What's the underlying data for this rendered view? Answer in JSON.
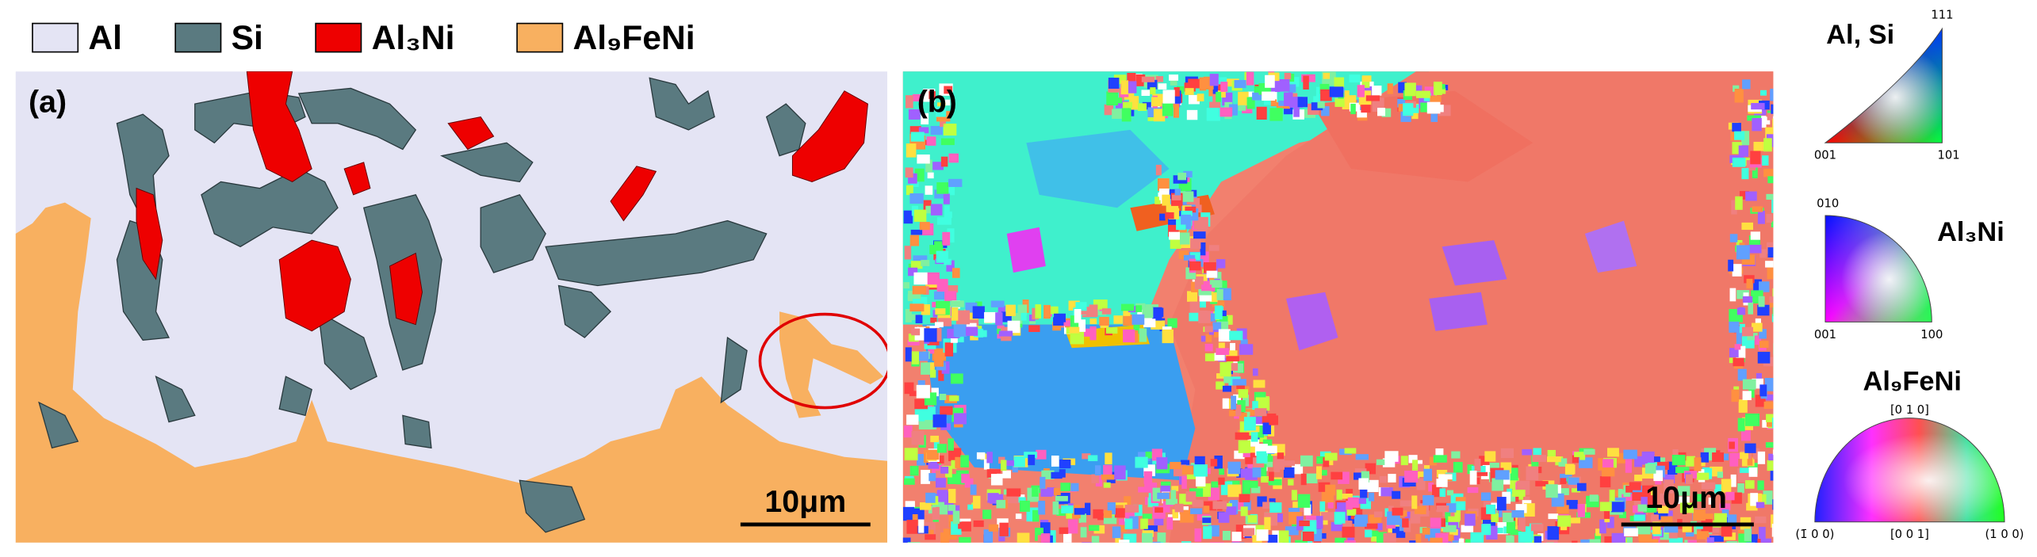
{
  "legend": [
    {
      "label": "Al",
      "color": "#e4e4f4"
    },
    {
      "label": "Si",
      "color": "#5a7a80"
    },
    {
      "label": "Al₃Ni",
      "color": "#ee0000"
    },
    {
      "label": "Al₉FeNi",
      "color": "#f8b060"
    }
  ],
  "panels": [
    {
      "label": "(a)",
      "scale_bar": "10μm"
    },
    {
      "label": "(b)",
      "scale_bar": "10μm"
    }
  ],
  "ipf_keys": [
    {
      "title": "Al, Si",
      "corners": [
        "111",
        "001",
        "101"
      ]
    },
    {
      "title": "Al₃Ni",
      "corners": [
        "010",
        "001",
        "100"
      ]
    },
    {
      "title": "Al₉FeNi",
      "corners": [
        "[0 1 0]",
        "(1̄ 0 0)",
        "[0 0 1]",
        "(1 0 0)"
      ]
    }
  ]
}
